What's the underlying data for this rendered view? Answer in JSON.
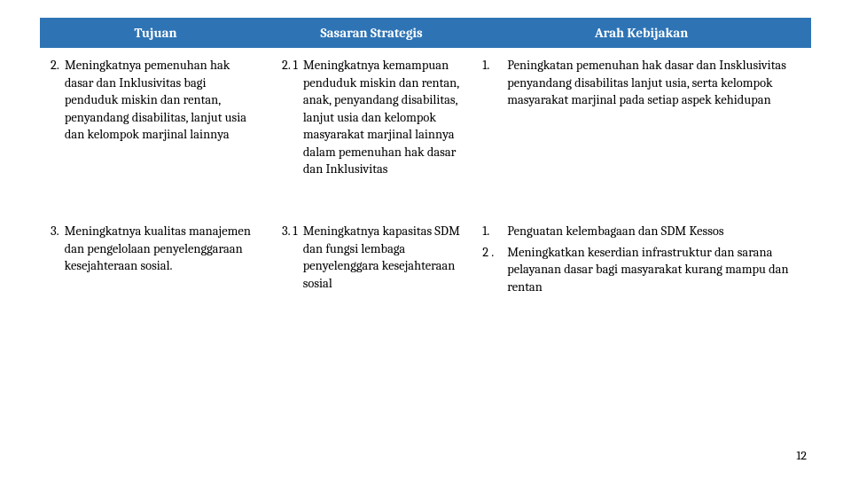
{
  "header": {
    "tujuan": "Tujuan",
    "sasaran": "Sasaran Strategis",
    "arah": "Arah Kebijakan"
  },
  "rows": [
    {
      "tujuan_num": "2.",
      "tujuan_txt": "Meningkatnya pemenuhan hak dasar dan Inklusivitas bagi penduduk  miskin dan rentan, penyandang disabilitas, lanjut usia dan kelompok marjinal lainnya",
      "sasaran_num": "2. 1",
      "sasaran_txt": "Meningkatnya kemampuan penduduk miskin dan rentan, anak, penyandang disabilitas, lanjut usia dan kelompok masyarakat marjinal lainnya dalam pemenuhan hak dasar dan Inklusivitas",
      "arah": [
        {
          "num": "1.",
          "txt": "Peningkatan pemenuhan hak dasar dan Insklusivitas penyandang disabilitas lanjut usia, serta kelompok masyarakat marjinal pada setiap aspek kehidupan"
        }
      ]
    },
    {
      "tujuan_num": "3.",
      "tujuan_txt": "Meningkatnya kualitas manajemen dan pengelolaan penyelenggaraan kesejahteraan sosial.",
      "sasaran_num": "3. 1",
      "sasaran_txt": "Meningkatnya kapasitas SDM dan fungsi lembaga penyelenggara kesejahteraan sosial",
      "arah": [
        {
          "num": "1.",
          "txt": "Penguatan kelembagaan dan SDM Kessos"
        },
        {
          "num": "2 .",
          "txt": "Meningkatkan keserdian infrastruktur dan sarana pelayanan dasar bagi masyarakat kurang mampu dan rentan"
        }
      ]
    }
  ],
  "page_number": "12"
}
